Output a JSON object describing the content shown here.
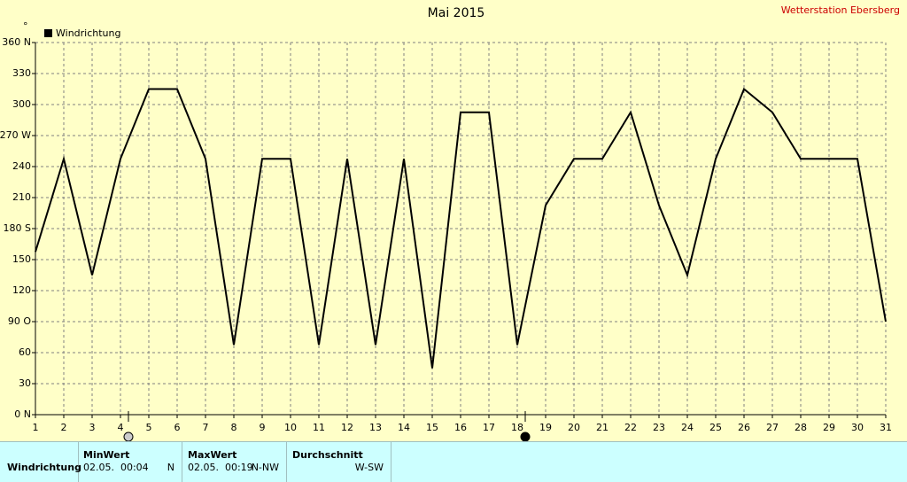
{
  "chart_data": {
    "type": "line",
    "title": "Mai 2015",
    "station": "Wetterstation Ebersberg",
    "y_unit": "°",
    "x": [
      1,
      2,
      3,
      4,
      5,
      6,
      7,
      8,
      9,
      10,
      11,
      12,
      13,
      14,
      15,
      16,
      17,
      18,
      19,
      20,
      21,
      22,
      23,
      24,
      25,
      26,
      27,
      28,
      29,
      30,
      31
    ],
    "series": [
      {
        "name": "Windrichtung",
        "color": "#000000",
        "values": [
          157.5,
          247.5,
          135,
          247.5,
          315,
          315,
          247.5,
          67.5,
          247.5,
          247.5,
          67.5,
          247.5,
          67.5,
          247.5,
          45,
          292.5,
          292.5,
          67.5,
          202.5,
          247.5,
          247.5,
          292.5,
          202.5,
          135,
          247.5,
          315,
          292.5,
          247.5,
          247.5,
          247.5,
          90
        ]
      }
    ],
    "xlim": [
      1,
      31
    ],
    "xticks": [
      1,
      2,
      3,
      4,
      5,
      6,
      7,
      8,
      9,
      10,
      11,
      12,
      13,
      14,
      15,
      16,
      17,
      18,
      19,
      20,
      21,
      22,
      23,
      24,
      25,
      26,
      27,
      28,
      29,
      30,
      31
    ],
    "ylim": [
      0,
      360
    ],
    "yticks": [
      {
        "value": 0,
        "label": "0 N"
      },
      30,
      60,
      {
        "value": 90,
        "label": "90  O"
      },
      120,
      150,
      {
        "value": 180,
        "label": "180 S"
      },
      210,
      240,
      {
        "value": 270,
        "label": "270 W"
      },
      300,
      330,
      {
        "value": 360,
        "label": "360 N"
      }
    ],
    "grid": true
  },
  "summary": {
    "headers": [
      "MinWert",
      "MaxWert",
      "Durchschnitt"
    ],
    "row": {
      "label": "Windrichtung",
      "min_time": "02.05.  00:04",
      "min_dir": "N",
      "max_time": "02.05.  00:19",
      "max_dir": "N-NW",
      "avg": "W-SW"
    }
  }
}
